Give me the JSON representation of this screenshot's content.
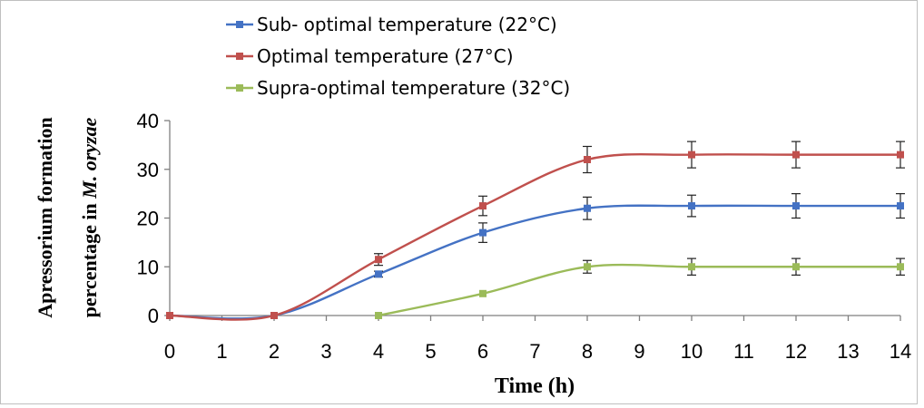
{
  "chart_data": {
    "type": "line",
    "title": "",
    "xlabel": "Time (h)",
    "ylabel_line1": "Apressorium formation",
    "ylabel_line2_prefix": "percentage in ",
    "ylabel_line2_italic": "M. oryzae",
    "xlim": [
      0,
      14
    ],
    "ylim": [
      0,
      40
    ],
    "xticks": [
      "0",
      "1",
      "2",
      "3",
      "4",
      "5",
      "6",
      "7",
      "8",
      "9",
      "10",
      "11",
      "12",
      "13",
      "14"
    ],
    "yticks": [
      "0",
      "10",
      "20",
      "30",
      "40"
    ],
    "grid": false,
    "legend_position": "top",
    "series": [
      {
        "name": "Sub- optimal temperature (22°C)",
        "color": "#4472C4",
        "x": [
          0,
          2,
          4,
          6,
          8,
          10,
          12,
          14
        ],
        "y": [
          0,
          0,
          8.5,
          17,
          22,
          22.5,
          22.5,
          22.5
        ],
        "err": [
          0,
          0,
          0.6,
          2,
          2.3,
          2.2,
          2.5,
          2.5
        ]
      },
      {
        "name": "Optimal temperature  (27°C)",
        "color": "#C0504D",
        "x": [
          0,
          2,
          4,
          6,
          8,
          10,
          12,
          14
        ],
        "y": [
          0,
          0,
          11.5,
          22.5,
          32,
          33,
          33,
          33
        ],
        "err": [
          0,
          0,
          1.2,
          2,
          2.7,
          2.7,
          2.7,
          2.7
        ]
      },
      {
        "name": "Supra-optimal temperature  (32°C)",
        "color": "#9BBB59",
        "x": [
          4,
          6,
          8,
          10,
          12,
          14
        ],
        "y": [
          0,
          4.5,
          10,
          10,
          10,
          10
        ],
        "err": [
          0,
          0,
          1.3,
          1.7,
          1.7,
          1.7
        ]
      }
    ]
  }
}
